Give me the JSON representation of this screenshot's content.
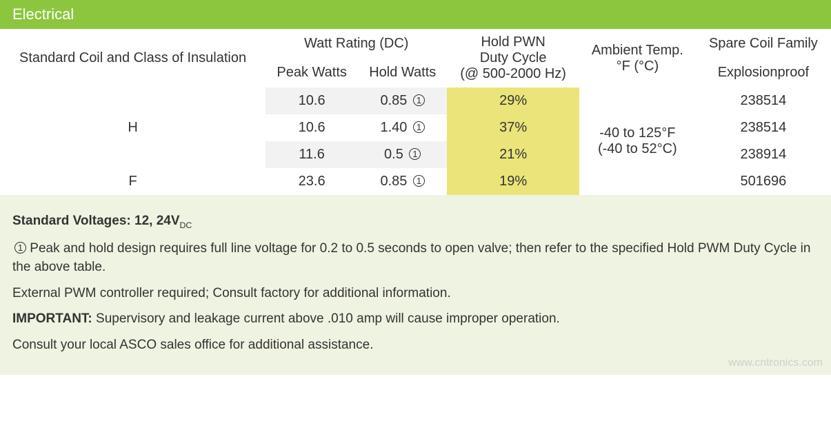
{
  "header": {
    "title": "Electrical"
  },
  "table": {
    "col_headers": {
      "coil": "Standard Coil and Class of Insulation",
      "watt_group": "Watt Rating (DC)",
      "peak": "Peak Watts",
      "hold": "Hold Watts",
      "pwm_l1": "Hold PWN",
      "pwm_l2": "Duty Cycle",
      "pwm_l3": "(@ 500-2000 Hz)",
      "ambient_l1": "Ambient Temp.",
      "ambient_l2": "°F (°C)",
      "spare_group": "Spare Coil Family",
      "explosion": "Explosionproof"
    },
    "rows": [
      {
        "coil": "",
        "peak": "10.6",
        "hold": "0.85",
        "note_mark": "①",
        "pwm": "29%",
        "part": "238514"
      },
      {
        "coil": "H",
        "peak": "10.6",
        "hold": "1.40",
        "note_mark": "①",
        "pwm": "37%",
        "part": "238514"
      },
      {
        "coil": "",
        "peak": "11.6",
        "hold": "0.5",
        "note_mark": "①",
        "pwm": "21%",
        "part": "238914"
      },
      {
        "coil": "F",
        "peak": "23.6",
        "hold": "0.85",
        "note_mark": "①",
        "pwm": "19%",
        "part": "501696"
      }
    ],
    "ambient_l1": "-40 to 125°F",
    "ambient_l2": "(-40 to 52°C)",
    "row_bg_grey": [
      true,
      false,
      true,
      false
    ],
    "colors": {
      "header_bg": "#8cc63f",
      "header_text": "#ffffff",
      "grey_bg": "#f2f2f2",
      "yellow_bg": "#eae47a",
      "notes_bg": "#eff3e1",
      "border": "#333333",
      "text": "#333333"
    }
  },
  "notes": {
    "voltages_label": "Standard Voltages: ",
    "voltages_value": "12, 24V",
    "voltages_sub": "DC",
    "n1_mark": "①",
    "n1": " Peak and hold design requires full line voltage for 0.2 to 0.5 seconds to open valve; then refer to the specified Hold PWM Duty Cycle in the above table.",
    "n2": "External PWM controller required; Consult factory for additional information.",
    "n3_label": "IMPORTANT:",
    "n3": " Supervisory and leakage current above .010 amp will cause improper operation.",
    "n4": "Consult your local ASCO sales office for additional assistance."
  },
  "watermark": "www.cntronics.com"
}
